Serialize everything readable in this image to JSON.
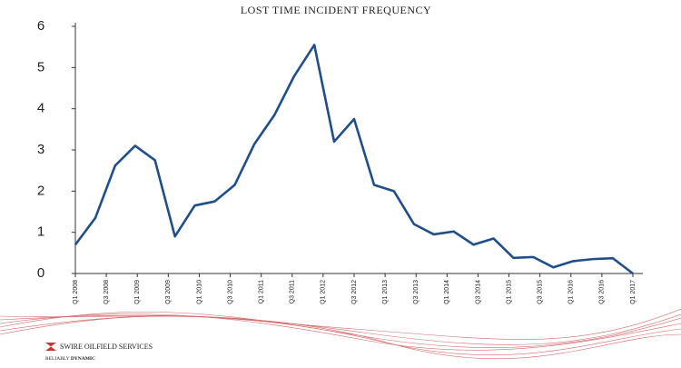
{
  "chart_data": {
    "type": "line",
    "title": "LOST TIME INCIDENT FREQUENCY",
    "x": [
      0,
      1.29,
      2.57,
      3.86,
      5.14,
      6.43,
      7.71,
      9,
      10.29,
      11.57,
      12.86,
      14.14,
      15.43,
      16.71,
      18,
      19.29,
      20.57,
      21.86,
      23.14,
      24.43,
      25.71,
      27,
      28.29,
      29.57,
      30.86,
      32.14,
      33.43,
      34.71,
      36
    ],
    "series": [
      {
        "color": "#1f4e8c",
        "values": [
          0.7,
          1.35,
          2.62,
          3.1,
          2.75,
          0.9,
          1.65,
          1.75,
          2.15,
          3.15,
          3.85,
          4.8,
          5.55,
          3.2,
          3.75,
          2.15,
          2.0,
          1.2,
          0.95,
          1.02,
          0.7,
          0.85,
          0.38,
          0.4,
          0.15,
          0.3,
          0.35,
          0.37,
          0
        ]
      }
    ],
    "xlim": [
      0,
      36
    ],
    "xticks": [
      {
        "value": 0,
        "label": "Q1 2008"
      },
      {
        "value": 2,
        "label": "Q3 2008"
      },
      {
        "value": 4,
        "label": "Q1 2009"
      },
      {
        "value": 6,
        "label": "Q3 2009"
      },
      {
        "value": 8,
        "label": "Q1 2010"
      },
      {
        "value": 10,
        "label": "Q3 2010"
      },
      {
        "value": 12,
        "label": "Q1 2011"
      },
      {
        "value": 14,
        "label": "Q3 2011"
      },
      {
        "value": 16,
        "label": "Q1 2012"
      },
      {
        "value": 18,
        "label": "Q3 2012"
      },
      {
        "value": 20,
        "label": "Q1 2013"
      },
      {
        "value": 22,
        "label": "Q3 2013"
      },
      {
        "value": 24,
        "label": "Q1 2014"
      },
      {
        "value": 26,
        "label": "Q3 2014"
      },
      {
        "value": 28,
        "label": "Q1 2015"
      },
      {
        "value": 30,
        "label": "Q3 2015"
      },
      {
        "value": 32,
        "label": "Q1 2016"
      },
      {
        "value": 34,
        "label": "Q3 2016"
      },
      {
        "value": 36,
        "label": "Q1 2017"
      }
    ],
    "ylim": [
      0,
      6
    ],
    "yticks": [
      0,
      1,
      2,
      3,
      4,
      5,
      6
    ],
    "grid": false
  },
  "branding": {
    "company": "SWIRE OILFIELD SERVICES",
    "tagline_1": "RELIABLY",
    "tagline_2": "DYNAMIC"
  }
}
